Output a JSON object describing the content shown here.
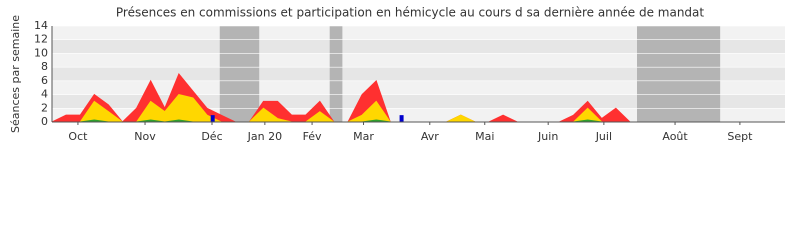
{
  "chart_data": {
    "type": "area",
    "title": "Présences en commissions et participation en hémicycle au cours d sa dernière année de mandat",
    "y_label": "Séances par semaine",
    "ylim": [
      0,
      14
    ],
    "yticks": [
      0,
      2,
      4,
      6,
      8,
      10,
      12,
      14
    ],
    "xlim": [
      0,
      52
    ],
    "xticks": [
      {
        "value": 1.84,
        "label": "Oct"
      },
      {
        "value": 6.6,
        "label": "Nov"
      },
      {
        "value": 11.35,
        "label": "Déc"
      },
      {
        "value": 15.1,
        "label": "Jan 20"
      },
      {
        "value": 18.45,
        "label": "Fév"
      },
      {
        "value": 22.1,
        "label": "Mar"
      },
      {
        "value": 26.8,
        "label": "Avr"
      },
      {
        "value": 30.7,
        "label": "Mai"
      },
      {
        "value": 35.2,
        "label": "Juin"
      },
      {
        "value": 39.15,
        "label": "Juil"
      },
      {
        "value": 44.2,
        "label": "Août"
      },
      {
        "value": 48.8,
        "label": "Sept"
      }
    ],
    "shaded_ranges": [
      [
        11.9,
        14.7
      ],
      [
        19.7,
        20.6
      ],
      [
        41.5,
        47.4
      ]
    ],
    "shade_color": "#b4b4b4",
    "x": [
      0,
      1,
      2,
      3,
      4,
      5,
      6,
      7,
      8,
      9,
      10,
      11,
      12,
      13,
      14,
      15,
      16,
      17,
      18,
      19,
      20,
      21,
      22,
      23,
      24,
      25,
      26,
      27,
      28,
      29,
      30,
      31,
      32,
      33,
      34,
      35,
      36,
      37,
      38,
      39,
      40,
      41,
      42,
      43,
      44,
      45,
      46,
      47,
      48,
      49,
      50,
      51,
      52
    ],
    "series": [
      {
        "color": "#ff3030",
        "values": [
          0,
          1,
          1,
          4,
          2.5,
          0,
          2,
          6,
          2,
          7,
          4.5,
          2,
          1,
          0,
          0,
          3,
          3,
          1,
          1,
          3,
          0,
          0,
          4,
          6,
          0,
          0,
          0,
          0,
          0,
          1,
          0,
          0,
          1,
          0,
          0,
          0,
          0,
          1,
          3,
          0.5,
          2,
          0,
          0,
          0,
          0,
          0,
          0,
          0,
          0,
          0,
          0,
          0,
          0
        ]
      },
      {
        "color": "#ffd700",
        "values": [
          0,
          0,
          0,
          3,
          1.5,
          0,
          0,
          3,
          1.5,
          4,
          3.5,
          1,
          0,
          0,
          0,
          2,
          0.5,
          0,
          0,
          1.5,
          0,
          0,
          1,
          3,
          0,
          0,
          0,
          0,
          0,
          1,
          0,
          0,
          0,
          0,
          0,
          0,
          0,
          0,
          2,
          0,
          0,
          0,
          0,
          0,
          0,
          0,
          0,
          0,
          0,
          0,
          0,
          0,
          0
        ]
      },
      {
        "color": "#2ca02c",
        "values": [
          0,
          0,
          0,
          0.3,
          0,
          0,
          0,
          0.3,
          0,
          0.3,
          0,
          0,
          0,
          0,
          0,
          0,
          0,
          0,
          0,
          0,
          0,
          0,
          0,
          0.3,
          0,
          0,
          0,
          0,
          0,
          0,
          0,
          0,
          0,
          0,
          0,
          0,
          0,
          0,
          0.3,
          0,
          0,
          0,
          0,
          0,
          0,
          0,
          0,
          0,
          0,
          0,
          0,
          0,
          0
        ]
      }
    ],
    "bars": {
      "color": "#0000cc",
      "x": [
        11.4,
        24.8
      ],
      "values": [
        1,
        1
      ]
    }
  }
}
